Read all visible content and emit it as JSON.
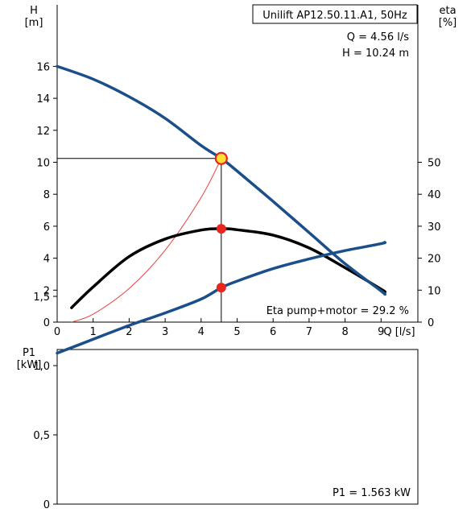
{
  "colors": {
    "head_curve": "#1b4f8a",
    "eta_curve": "#000000",
    "system_curve": "#e8413a",
    "op_marker": "#e8261e",
    "op_marker_highlight_fill": "#ffe135",
    "p1_curve": "#1b4f8a"
  },
  "chart_data": [
    {
      "type": "line",
      "title": "Unilift AP12.50.11.A1, 50Hz",
      "annotations": [
        "Q = 4.56 l/s",
        "H = 10.24 m",
        "Eta pump+motor = 29.2 %"
      ],
      "xlabel": "Q [l/s]",
      "ylabel_lines": [
        "H",
        "[m]"
      ],
      "y2label_lines": [
        "eta",
        "[%]"
      ],
      "xlim": [
        0,
        10
      ],
      "ylim": [
        0,
        18
      ],
      "y2lim": [
        0,
        60
      ],
      "x_ticks": [
        "0",
        "1",
        "2",
        "3",
        "4",
        "5",
        "6",
        "7",
        "8",
        "9",
        "Q [l/s]"
      ],
      "y_ticks": [
        "0",
        "2",
        "4",
        "6",
        "8",
        "10",
        "12",
        "14",
        "16"
      ],
      "y2_ticks": [
        "0",
        "10",
        "20",
        "30",
        "40",
        "50"
      ],
      "grid": false,
      "operating_point": {
        "x": 4.56,
        "y": 10.24,
        "eta": 29.2
      },
      "series": [
        {
          "key": "head",
          "axis": "left",
          "x": [
            0,
            1,
            2,
            3,
            4,
            4.56,
            5,
            6,
            7,
            8,
            9,
            9.1
          ],
          "values": [
            16.0,
            15.2,
            14.1,
            12.75,
            11.05,
            10.24,
            9.45,
            7.55,
            5.6,
            3.65,
            1.95,
            1.75
          ]
        },
        {
          "key": "eta",
          "axis": "right",
          "x": [
            0.4,
            1,
            2,
            3,
            4,
            4.56,
            5,
            6,
            7,
            8,
            9,
            9.1
          ],
          "values": [
            4.5,
            11,
            20.5,
            26,
            28.8,
            29.2,
            28.9,
            27.2,
            23.2,
            17,
            10.3,
            9.5
          ]
        },
        {
          "key": "system",
          "axis": "left",
          "x": [
            0.4,
            1,
            2,
            3,
            4,
            4.56
          ],
          "values": [
            0,
            0.5,
            2.1,
            4.5,
            7.8,
            10.24
          ]
        }
      ]
    },
    {
      "type": "line",
      "annotations": [
        "P1 = 1.563 kW"
      ],
      "ylabel_lines": [
        "P1",
        "[kW]"
      ],
      "xlim": [
        0,
        10
      ],
      "ylim": [
        0,
        2.0
      ],
      "y_ticks": [
        "0",
        "0,5",
        "1,0",
        "1,5"
      ],
      "grid": false,
      "operating_point": {
        "x": 4.56,
        "y": 1.563
      },
      "series": [
        {
          "key": "p1",
          "axis": "left",
          "x": [
            0,
            1,
            2,
            3,
            4,
            4.56,
            5,
            6,
            7,
            8,
            9,
            9.1
          ],
          "values": [
            1.09,
            1.19,
            1.29,
            1.38,
            1.48,
            1.563,
            1.61,
            1.7,
            1.77,
            1.83,
            1.88,
            1.89
          ]
        }
      ]
    }
  ]
}
